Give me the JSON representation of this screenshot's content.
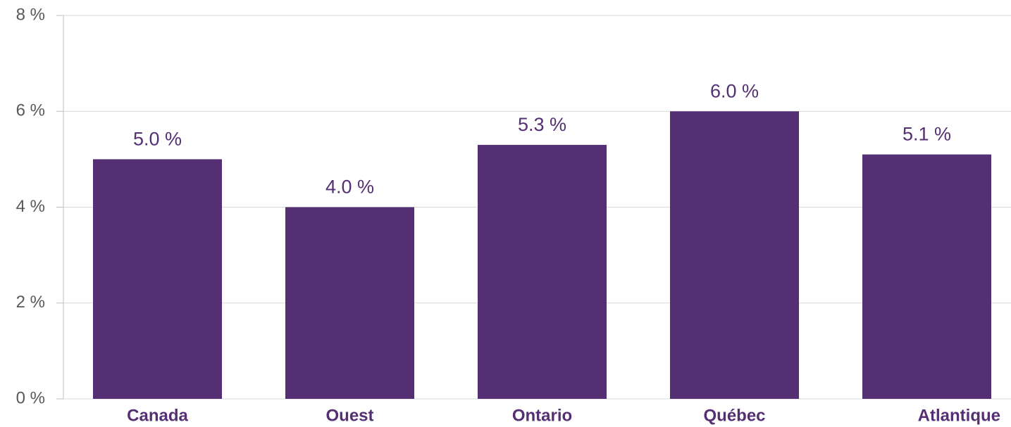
{
  "chart_data": {
    "type": "bar",
    "categories": [
      "Canada",
      "Ouest",
      "Ontario",
      "Québec",
      "Atlantique"
    ],
    "values": [
      5.0,
      4.0,
      5.3,
      6.0,
      5.1
    ],
    "value_labels": [
      "5.0 %",
      "4.0 %",
      "5.3 %",
      "6.0 %",
      "5.1 %"
    ],
    "color": "#552f73",
    "ylim": [
      0,
      8
    ],
    "yticks": [
      {
        "value": 0,
        "label": "0 %"
      },
      {
        "value": 2,
        "label": "2 %"
      },
      {
        "value": 4,
        "label": "4 %"
      },
      {
        "value": 6,
        "label": "6 %"
      },
      {
        "value": 8,
        "label": "8 %"
      }
    ],
    "grid": true
  }
}
